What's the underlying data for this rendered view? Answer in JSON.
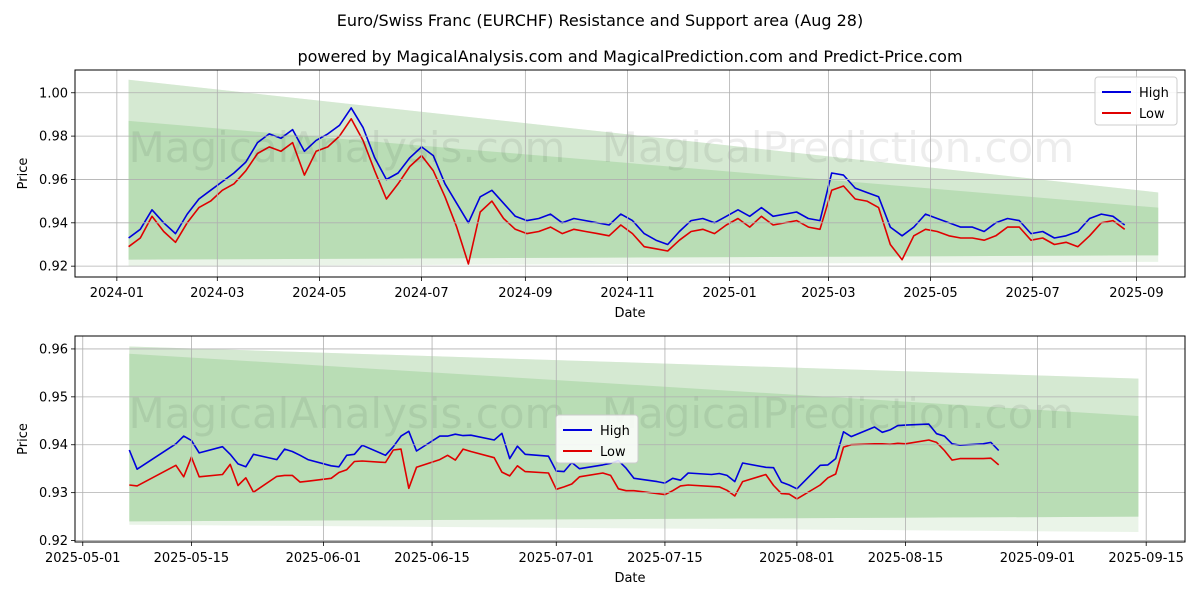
{
  "title": "Euro/Swiss Franc (EURCHF) Resistance and Support area (Aug 28)",
  "subtitle": "powered by MagicalAnalysis.com and MagicalPrediction.com and Predict-Price.com",
  "watermarks": [
    "MagicalAnalysis.com",
    "MagicalPrediction.com"
  ],
  "colors": {
    "high": "#0000dd",
    "low": "#e00000",
    "band_outer": "#cfe6cc",
    "band_inner": "#b4dab0",
    "band_lower": "#e8f3e6",
    "grid": "#b0b0b0"
  },
  "chart_data": [
    {
      "type": "line",
      "xlabel": "Date",
      "ylabel": "Price",
      "x_ticks": [
        "2024-01",
        "2024-03",
        "2024-05",
        "2024-07",
        "2024-09",
        "2024-11",
        "2025-01",
        "2025-03",
        "2025-05",
        "2025-07",
        "2025-09"
      ],
      "y_ticks": [
        "0.92",
        "0.94",
        "0.96",
        "0.98",
        "1.00"
      ],
      "ylim": [
        0.915,
        1.0105
      ],
      "xlim": [
        "2023-12-07",
        "2025-09-30"
      ],
      "grid": true,
      "legend": "top-right",
      "legend_entries": [
        "High",
        "Low"
      ],
      "resistance_support_band": {
        "start": "2024-01-08",
        "end": "2025-09-14",
        "outer_top": [
          1.006,
          0.954
        ],
        "inner_top": [
          0.987,
          0.947
        ],
        "inner_bottom": [
          0.923,
          0.925
        ],
        "outer_bottom": [
          0.92,
          0.922
        ]
      },
      "series": [
        {
          "name": "High",
          "x": [
            "2024-01-08",
            "2024-01-15",
            "2024-01-22",
            "2024-01-29",
            "2024-02-05",
            "2024-02-12",
            "2024-02-19",
            "2024-02-26",
            "2024-03-04",
            "2024-03-11",
            "2024-03-18",
            "2024-03-25",
            "2024-04-01",
            "2024-04-08",
            "2024-04-15",
            "2024-04-22",
            "2024-04-29",
            "2024-05-06",
            "2024-05-13",
            "2024-05-20",
            "2024-05-27",
            "2024-06-03",
            "2024-06-10",
            "2024-06-17",
            "2024-06-24",
            "2024-07-01",
            "2024-07-08",
            "2024-07-15",
            "2024-07-22",
            "2024-07-29",
            "2024-08-05",
            "2024-08-12",
            "2024-08-19",
            "2024-08-26",
            "2024-09-02",
            "2024-09-09",
            "2024-09-16",
            "2024-09-23",
            "2024-09-30",
            "2024-10-07",
            "2024-10-14",
            "2024-10-21",
            "2024-10-28",
            "2024-11-04",
            "2024-11-11",
            "2024-11-18",
            "2024-11-25",
            "2024-12-02",
            "2024-12-09",
            "2024-12-16",
            "2024-12-23",
            "2024-12-30",
            "2025-01-06",
            "2025-01-13",
            "2025-01-20",
            "2025-01-27",
            "2025-02-03",
            "2025-02-10",
            "2025-02-17",
            "2025-02-24",
            "2025-03-03",
            "2025-03-10",
            "2025-03-17",
            "2025-03-24",
            "2025-03-31",
            "2025-04-07",
            "2025-04-14",
            "2025-04-21",
            "2025-04-28",
            "2025-05-05",
            "2025-05-12",
            "2025-05-19",
            "2025-05-26",
            "2025-06-02",
            "2025-06-09",
            "2025-06-16",
            "2025-06-23",
            "2025-06-30",
            "2025-07-07",
            "2025-07-14",
            "2025-07-21",
            "2025-07-28",
            "2025-08-04",
            "2025-08-11",
            "2025-08-18",
            "2025-08-25"
          ],
          "values": [
            0.933,
            0.937,
            0.946,
            0.94,
            0.935,
            0.944,
            0.951,
            0.955,
            0.959,
            0.963,
            0.968,
            0.977,
            0.981,
            0.979,
            0.983,
            0.973,
            0.978,
            0.981,
            0.985,
            0.993,
            0.984,
            0.97,
            0.96,
            0.963,
            0.97,
            0.975,
            0.971,
            0.958,
            0.949,
            0.94,
            0.952,
            0.955,
            0.949,
            0.943,
            0.941,
            0.942,
            0.944,
            0.94,
            0.942,
            0.941,
            0.94,
            0.939,
            0.944,
            0.941,
            0.935,
            0.932,
            0.93,
            0.936,
            0.941,
            0.942,
            0.94,
            0.943,
            0.946,
            0.943,
            0.947,
            0.943,
            0.944,
            0.945,
            0.942,
            0.941,
            0.963,
            0.962,
            0.956,
            0.954,
            0.952,
            0.938,
            0.934,
            0.938,
            0.944,
            0.942,
            0.94,
            0.938,
            0.938,
            0.936,
            0.94,
            0.942,
            0.941,
            0.935,
            0.936,
            0.933,
            0.934,
            0.936,
            0.942,
            0.944,
            0.943,
            0.939
          ]
        },
        {
          "name": "Low",
          "x": [
            "2024-01-08",
            "2024-01-15",
            "2024-01-22",
            "2024-01-29",
            "2024-02-05",
            "2024-02-12",
            "2024-02-19",
            "2024-02-26",
            "2024-03-04",
            "2024-03-11",
            "2024-03-18",
            "2024-03-25",
            "2024-04-01",
            "2024-04-08",
            "2024-04-15",
            "2024-04-22",
            "2024-04-29",
            "2024-05-06",
            "2024-05-13",
            "2024-05-20",
            "2024-05-27",
            "2024-06-03",
            "2024-06-10",
            "2024-06-17",
            "2024-06-24",
            "2024-07-01",
            "2024-07-08",
            "2024-07-15",
            "2024-07-22",
            "2024-07-29",
            "2024-08-05",
            "2024-08-12",
            "2024-08-19",
            "2024-08-26",
            "2024-09-02",
            "2024-09-09",
            "2024-09-16",
            "2024-09-23",
            "2024-09-30",
            "2024-10-07",
            "2024-10-14",
            "2024-10-21",
            "2024-10-28",
            "2024-11-04",
            "2024-11-11",
            "2024-11-18",
            "2024-11-25",
            "2024-12-02",
            "2024-12-09",
            "2024-12-16",
            "2024-12-23",
            "2024-12-30",
            "2025-01-06",
            "2025-01-13",
            "2025-01-20",
            "2025-01-27",
            "2025-02-03",
            "2025-02-10",
            "2025-02-17",
            "2025-02-24",
            "2025-03-03",
            "2025-03-10",
            "2025-03-17",
            "2025-03-24",
            "2025-03-31",
            "2025-04-07",
            "2025-04-14",
            "2025-04-21",
            "2025-04-28",
            "2025-05-05",
            "2025-05-12",
            "2025-05-19",
            "2025-05-26",
            "2025-06-02",
            "2025-06-09",
            "2025-06-16",
            "2025-06-23",
            "2025-06-30",
            "2025-07-07",
            "2025-07-14",
            "2025-07-21",
            "2025-07-28",
            "2025-08-04",
            "2025-08-11",
            "2025-08-18",
            "2025-08-25"
          ],
          "values": [
            0.929,
            0.933,
            0.943,
            0.936,
            0.931,
            0.94,
            0.947,
            0.95,
            0.955,
            0.958,
            0.964,
            0.972,
            0.975,
            0.973,
            0.977,
            0.962,
            0.973,
            0.975,
            0.98,
            0.988,
            0.978,
            0.964,
            0.951,
            0.958,
            0.966,
            0.971,
            0.964,
            0.952,
            0.938,
            0.921,
            0.945,
            0.95,
            0.942,
            0.937,
            0.935,
            0.936,
            0.938,
            0.935,
            0.937,
            0.936,
            0.935,
            0.934,
            0.939,
            0.935,
            0.929,
            0.928,
            0.927,
            0.932,
            0.936,
            0.937,
            0.935,
            0.939,
            0.942,
            0.938,
            0.943,
            0.939,
            0.94,
            0.941,
            0.938,
            0.937,
            0.955,
            0.957,
            0.951,
            0.95,
            0.947,
            0.93,
            0.923,
            0.934,
            0.937,
            0.936,
            0.934,
            0.933,
            0.933,
            0.932,
            0.934,
            0.938,
            0.938,
            0.932,
            0.933,
            0.93,
            0.931,
            0.929,
            0.934,
            0.94,
            0.941,
            0.937
          ]
        }
      ]
    },
    {
      "type": "line",
      "xlabel": "Date",
      "ylabel": "Price",
      "x_ticks": [
        "2025-05-01",
        "2025-05-15",
        "2025-06-01",
        "2025-06-15",
        "2025-07-01",
        "2025-07-15",
        "2025-08-01",
        "2025-08-15",
        "2025-09-01",
        "2025-09-15"
      ],
      "y_ticks": [
        "0.92",
        "0.93",
        "0.94",
        "0.95",
        "0.96"
      ],
      "ylim": [
        0.9197,
        0.9627
      ],
      "xlim": [
        "2025-04-30",
        "2025-09-20"
      ],
      "grid": true,
      "legend": "center",
      "legend_entries": [
        "High",
        "Low"
      ],
      "resistance_support_band": {
        "start": "2025-05-07",
        "end": "2025-09-14",
        "outer_top": [
          0.9605,
          0.9538
        ],
        "inner_top": [
          0.959,
          0.946
        ],
        "inner_bottom": [
          0.924,
          0.925
        ],
        "outer_bottom": [
          0.9233,
          0.9218
        ]
      },
      "series": [
        {
          "name": "High",
          "x": [
            "2025-05-07",
            "2025-05-08",
            "2025-05-13",
            "2025-05-14",
            "2025-05-15",
            "2025-05-16",
            "2025-05-19",
            "2025-05-20",
            "2025-05-21",
            "2025-05-22",
            "2025-05-23",
            "2025-05-26",
            "2025-05-27",
            "2025-05-28",
            "2025-05-29",
            "2025-05-30",
            "2025-06-02",
            "2025-06-03",
            "2025-06-04",
            "2025-06-05",
            "2025-06-06",
            "2025-06-09",
            "2025-06-10",
            "2025-06-11",
            "2025-06-12",
            "2025-06-13",
            "2025-06-16",
            "2025-06-17",
            "2025-06-18",
            "2025-06-19",
            "2025-06-20",
            "2025-06-23",
            "2025-06-24",
            "2025-06-25",
            "2025-06-26",
            "2025-06-27",
            "2025-06-30",
            "2025-07-01",
            "2025-07-02",
            "2025-07-03",
            "2025-07-04",
            "2025-07-07",
            "2025-07-08",
            "2025-07-09",
            "2025-07-10",
            "2025-07-11",
            "2025-07-14",
            "2025-07-15",
            "2025-07-16",
            "2025-07-17",
            "2025-07-18",
            "2025-07-21",
            "2025-07-22",
            "2025-07-23",
            "2025-07-24",
            "2025-07-25",
            "2025-07-28",
            "2025-07-29",
            "2025-07-30",
            "2025-07-31",
            "2025-08-01",
            "2025-08-04",
            "2025-08-05",
            "2025-08-06",
            "2025-08-07",
            "2025-08-08",
            "2025-08-11",
            "2025-08-12",
            "2025-08-13",
            "2025-08-14",
            "2025-08-15",
            "2025-08-18",
            "2025-08-19",
            "2025-08-20",
            "2025-08-21",
            "2025-08-22",
            "2025-08-25",
            "2025-08-26",
            "2025-08-27"
          ],
          "values": [
            0.9389,
            0.9349,
            0.9402,
            0.9418,
            0.9409,
            0.9383,
            0.9396,
            0.938,
            0.936,
            0.9354,
            0.938,
            0.9369,
            0.9391,
            0.9386,
            0.9378,
            0.9369,
            0.9356,
            0.9354,
            0.9378,
            0.938,
            0.9399,
            0.9378,
            0.9396,
            0.9418,
            0.9428,
            0.9387,
            0.9418,
            0.9418,
            0.9422,
            0.9419,
            0.942,
            0.941,
            0.9424,
            0.9371,
            0.9397,
            0.938,
            0.9376,
            0.9345,
            0.9344,
            0.9363,
            0.935,
            0.9358,
            0.9361,
            0.9367,
            0.9351,
            0.933,
            0.9323,
            0.932,
            0.933,
            0.9326,
            0.9341,
            0.9338,
            0.934,
            0.9336,
            0.9323,
            0.9362,
            0.9353,
            0.9352,
            0.9322,
            0.9316,
            0.9308,
            0.9357,
            0.9358,
            0.9371,
            0.9427,
            0.9417,
            0.9437,
            0.9426,
            0.9431,
            0.944,
            0.9441,
            0.9443,
            0.9423,
            0.9418,
            0.9402,
            0.9399,
            0.9402,
            0.9405,
            0.9388
          ]
        },
        {
          "name": "Low",
          "x": [
            "2025-05-07",
            "2025-05-08",
            "2025-05-13",
            "2025-05-14",
            "2025-05-15",
            "2025-05-16",
            "2025-05-19",
            "2025-05-20",
            "2025-05-21",
            "2025-05-22",
            "2025-05-23",
            "2025-05-26",
            "2025-05-27",
            "2025-05-28",
            "2025-05-29",
            "2025-05-30",
            "2025-06-02",
            "2025-06-03",
            "2025-06-04",
            "2025-06-05",
            "2025-06-06",
            "2025-06-09",
            "2025-06-10",
            "2025-06-11",
            "2025-06-12",
            "2025-06-13",
            "2025-06-16",
            "2025-06-17",
            "2025-06-18",
            "2025-06-19",
            "2025-06-20",
            "2025-06-23",
            "2025-06-24",
            "2025-06-25",
            "2025-06-26",
            "2025-06-27",
            "2025-06-30",
            "2025-07-01",
            "2025-07-02",
            "2025-07-03",
            "2025-07-04",
            "2025-07-07",
            "2025-07-08",
            "2025-07-09",
            "2025-07-10",
            "2025-07-11",
            "2025-07-14",
            "2025-07-15",
            "2025-07-16",
            "2025-07-17",
            "2025-07-18",
            "2025-07-21",
            "2025-07-22",
            "2025-07-23",
            "2025-07-24",
            "2025-07-25",
            "2025-07-28",
            "2025-07-29",
            "2025-07-30",
            "2025-07-31",
            "2025-08-01",
            "2025-08-04",
            "2025-08-05",
            "2025-08-06",
            "2025-08-07",
            "2025-08-08",
            "2025-08-11",
            "2025-08-12",
            "2025-08-13",
            "2025-08-14",
            "2025-08-15",
            "2025-08-18",
            "2025-08-19",
            "2025-08-20",
            "2025-08-21",
            "2025-08-22",
            "2025-08-25",
            "2025-08-26",
            "2025-08-27"
          ],
          "values": [
            0.9316,
            0.9314,
            0.9357,
            0.9333,
            0.9374,
            0.9333,
            0.9338,
            0.9359,
            0.9315,
            0.9331,
            0.9301,
            0.9334,
            0.9336,
            0.9336,
            0.9322,
            0.9324,
            0.933,
            0.9342,
            0.9348,
            0.9365,
            0.9366,
            0.9363,
            0.9389,
            0.9391,
            0.9309,
            0.9353,
            0.9369,
            0.9378,
            0.9368,
            0.9391,
            0.9386,
            0.9373,
            0.9343,
            0.9335,
            0.9356,
            0.9344,
            0.9341,
            0.9307,
            0.9312,
            0.9318,
            0.9333,
            0.9341,
            0.9336,
            0.9308,
            0.9304,
            0.9304,
            0.9298,
            0.9296,
            0.9304,
            0.9314,
            0.9316,
            0.9313,
            0.9312,
            0.9305,
            0.9293,
            0.9323,
            0.9338,
            0.9315,
            0.9298,
            0.9297,
            0.9287,
            0.9316,
            0.9331,
            0.9339,
            0.9395,
            0.94,
            0.9402,
            0.9402,
            0.9401,
            0.9403,
            0.9402,
            0.941,
            0.9405,
            0.9388,
            0.9368,
            0.9371,
            0.9371,
            0.9372,
            0.9358
          ]
        }
      ]
    }
  ]
}
